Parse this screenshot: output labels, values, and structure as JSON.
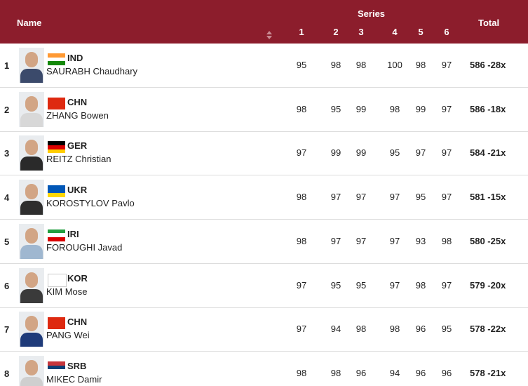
{
  "header": {
    "name": "Name",
    "series": "Series",
    "series_columns": [
      1,
      2,
      3,
      4,
      5,
      6
    ],
    "total": "Total"
  },
  "rows": [
    {
      "rank": 1,
      "country": "IND",
      "name": "SAURABH Chaudhary",
      "series": [
        95,
        98,
        98,
        100,
        98,
        97
      ],
      "total": "586 -28x"
    },
    {
      "rank": 2,
      "country": "CHN",
      "name": "ZHANG Bowen",
      "series": [
        98,
        95,
        99,
        98,
        99,
        97
      ],
      "total": "586 -18x"
    },
    {
      "rank": 3,
      "country": "GER",
      "name": "REITZ Christian",
      "series": [
        97,
        99,
        99,
        95,
        97,
        97
      ],
      "total": "584 -21x"
    },
    {
      "rank": 4,
      "country": "UKR",
      "name": "KOROSTYLOV Pavlo",
      "series": [
        98,
        97,
        97,
        97,
        95,
        97
      ],
      "total": "581 -15x"
    },
    {
      "rank": 5,
      "country": "IRI",
      "name": "FOROUGHI Javad",
      "series": [
        98,
        97,
        97,
        97,
        93,
        98
      ],
      "total": "580 -25x"
    },
    {
      "rank": 6,
      "country": "KOR",
      "name": "KIM Mose",
      "series": [
        97,
        95,
        95,
        97,
        98,
        97
      ],
      "total": "579 -20x"
    },
    {
      "rank": 7,
      "country": "CHN",
      "name": "PANG Wei",
      "series": [
        97,
        94,
        98,
        98,
        96,
        95
      ],
      "total": "578 -22x"
    },
    {
      "rank": 8,
      "country": "SRB",
      "name": "MIKEC Damir",
      "series": [
        98,
        98,
        96,
        94,
        96,
        96
      ],
      "total": "578 -21x"
    }
  ]
}
